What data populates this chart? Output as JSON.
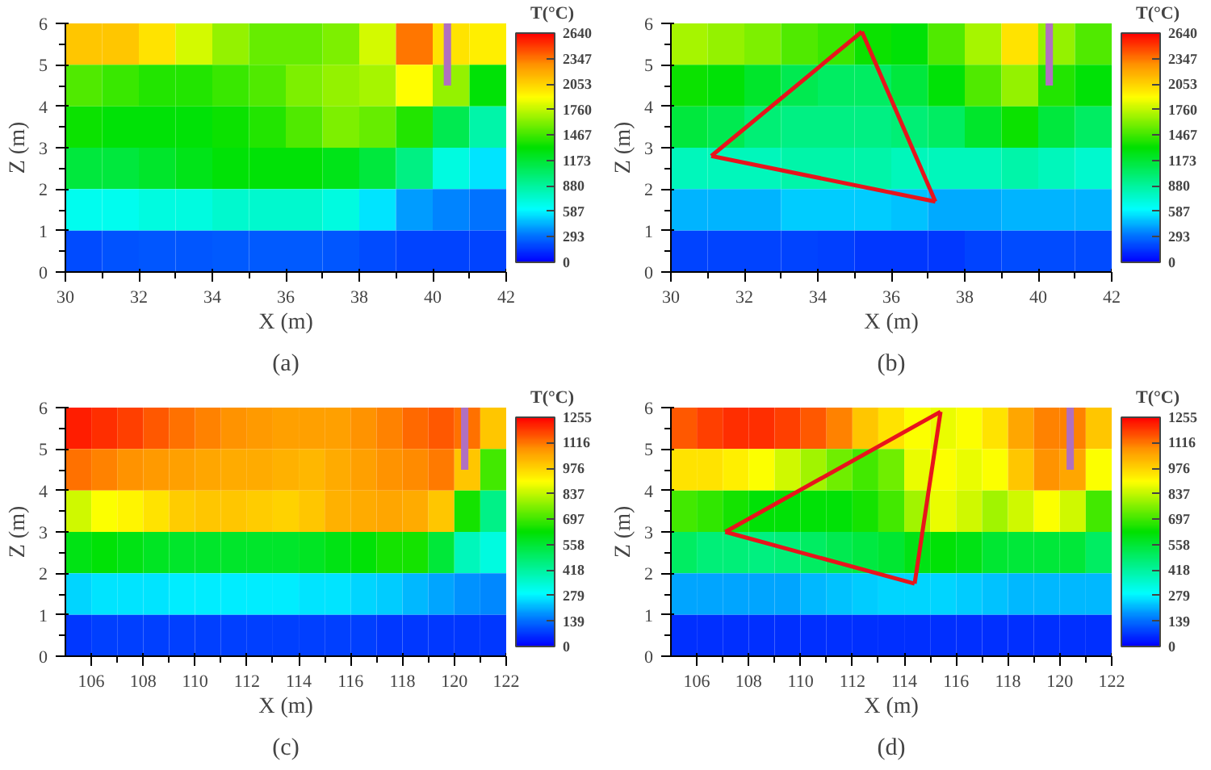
{
  "chart_data": [
    {
      "type": "heatmap",
      "title": "(a)",
      "xlabel": "X (m)",
      "ylabel": "Z (m)",
      "clabel": "T(°C)",
      "xlim": [
        30,
        42
      ],
      "ylim": [
        0,
        6
      ],
      "xticks": [
        30,
        32,
        34,
        36,
        38,
        40,
        42
      ],
      "yticks": [
        0,
        1,
        2,
        3,
        4,
        5,
        6
      ],
      "clim": [
        0,
        2640
      ],
      "cticks": [
        0,
        293,
        587,
        880,
        1173,
        1467,
        1760,
        2053,
        2347,
        2640
      ],
      "series": [
        {
          "type": "bar",
          "x": [
            40.4
          ],
          "base": [
            4.5
          ],
          "values": [
            1.5
          ],
          "color": "#b070c0"
        }
      ],
      "cells": [
        [
          2100,
          2100,
          2000,
          1800,
          1650,
          1550,
          1550,
          1600,
          1800,
          2350,
          2000,
          1950
        ],
        [
          1500,
          1450,
          1400,
          1400,
          1450,
          1500,
          1600,
          1650,
          1700,
          1900,
          1650,
          1300
        ],
        [
          1350,
          1300,
          1300,
          1300,
          1350,
          1400,
          1500,
          1600,
          1550,
          1400,
          1100,
          850
        ],
        [
          1150,
          1150,
          1200,
          1250,
          1300,
          1300,
          1300,
          1250,
          1150,
          950,
          700,
          550
        ],
        [
          650,
          650,
          700,
          700,
          750,
          750,
          750,
          700,
          550,
          400,
          350,
          300
        ],
        [
          200,
          220,
          230,
          230,
          240,
          240,
          240,
          230,
          200,
          180,
          180,
          180
        ]
      ]
    },
    {
      "type": "heatmap",
      "title": "(b)",
      "xlabel": "X (m)",
      "ylabel": "Z (m)",
      "clabel": "T(°C)",
      "xlim": [
        30,
        42
      ],
      "ylim": [
        0,
        6
      ],
      "xticks": [
        30,
        32,
        34,
        36,
        38,
        40,
        42
      ],
      "yticks": [
        0,
        1,
        2,
        3,
        4,
        5,
        6
      ],
      "clim": [
        0,
        2640
      ],
      "cticks": [
        0,
        293,
        587,
        880,
        1173,
        1467,
        1760,
        2053,
        2347,
        2640
      ],
      "series": [
        {
          "type": "bar",
          "x": [
            40.3
          ],
          "base": [
            4.5
          ],
          "values": [
            1.5
          ],
          "color": "#b070c0"
        },
        {
          "type": "line",
          "x": [
            31.1,
            35.2
          ],
          "values": [
            2.8,
            5.8
          ],
          "color": "#e8141c"
        },
        {
          "type": "line",
          "x": [
            35.2,
            37.2
          ],
          "values": [
            5.8,
            1.7
          ],
          "color": "#e8141c"
        },
        {
          "type": "line",
          "x": [
            31.1,
            37.2
          ],
          "values": [
            2.8,
            1.7
          ],
          "color": "#e8141c"
        }
      ],
      "cells": [
        [
          1700,
          1650,
          1600,
          1500,
          1450,
          1350,
          1300,
          1500,
          1700,
          2000,
          1650,
          1500
        ],
        [
          1350,
          1300,
          1200,
          1100,
          1050,
          1050,
          1150,
          1300,
          1500,
          1650,
          1400,
          1300
        ],
        [
          1150,
          1100,
          1000,
          950,
          950,
          950,
          1000,
          1050,
          1200,
          1350,
          1150,
          1050
        ],
        [
          800,
          800,
          800,
          850,
          850,
          850,
          800,
          800,
          800,
          850,
          800,
          750
        ],
        [
          450,
          450,
          450,
          500,
          500,
          500,
          480,
          430,
          430,
          450,
          450,
          450
        ],
        [
          180,
          180,
          180,
          180,
          170,
          150,
          150,
          150,
          180,
          200,
          200,
          200
        ]
      ]
    },
    {
      "type": "heatmap",
      "title": "(c)",
      "xlabel": "X (m)",
      "ylabel": "Z (m)",
      "clabel": "T(°C)",
      "xlim": [
        105,
        122
      ],
      "ylim": [
        0,
        6
      ],
      "xticks": [
        106,
        108,
        110,
        112,
        114,
        116,
        118,
        120,
        122
      ],
      "yticks": [
        0,
        1,
        2,
        3,
        4,
        5,
        6
      ],
      "clim": [
        0,
        1255
      ],
      "cticks": [
        0,
        139,
        279,
        418,
        558,
        697,
        837,
        976,
        1116,
        1255
      ],
      "series": [
        {
          "type": "bar",
          "x": [
            120.4
          ],
          "base": [
            4.5
          ],
          "values": [
            1.5
          ],
          "color": "#b070c0"
        }
      ],
      "cells": [
        [
          1220,
          1200,
          1180,
          1150,
          1120,
          1100,
          1080,
          1070,
          1060,
          1060,
          1060,
          1080,
          1100,
          1130,
          1150,
          1120,
          1000
        ],
        [
          1120,
          1100,
          1080,
          1070,
          1060,
          1050,
          1040,
          1040,
          1030,
          1020,
          1040,
          1060,
          1080,
          1090,
          1110,
          1000,
          700
        ],
        [
          850,
          900,
          920,
          950,
          990,
          1000,
          1000,
          990,
          980,
          1000,
          1030,
          1040,
          1050,
          1040,
          1000,
          650,
          450
        ],
        [
          600,
          620,
          600,
          580,
          570,
          570,
          570,
          570,
          570,
          580,
          600,
          620,
          650,
          650,
          550,
          380,
          330
        ],
        [
          250,
          260,
          260,
          260,
          270,
          270,
          270,
          270,
          270,
          260,
          260,
          250,
          240,
          220,
          200,
          180,
          170
        ],
        [
          70,
          80,
          80,
          80,
          80,
          80,
          80,
          80,
          80,
          80,
          80,
          80,
          70,
          70,
          70,
          70,
          70
        ]
      ]
    },
    {
      "type": "heatmap",
      "title": "(d)",
      "xlabel": "X (m)",
      "ylabel": "Z (m)",
      "clabel": "T(°C)",
      "xlim": [
        105,
        122
      ],
      "ylim": [
        0,
        6
      ],
      "xticks": [
        106,
        108,
        110,
        112,
        114,
        116,
        118,
        120,
        122
      ],
      "yticks": [
        0,
        1,
        2,
        3,
        4,
        5,
        6
      ],
      "clim": [
        0,
        1255
      ],
      "cticks": [
        0,
        139,
        279,
        418,
        558,
        697,
        837,
        976,
        1116,
        1255
      ],
      "series": [
        {
          "type": "bar",
          "x": [
            120.4
          ],
          "base": [
            4.5
          ],
          "values": [
            1.5
          ],
          "color": "#b070c0"
        },
        {
          "type": "line",
          "x": [
            107.1,
            115.4
          ],
          "values": [
            3.0,
            5.9
          ],
          "color": "#e8141c"
        },
        {
          "type": "line",
          "x": [
            114.4,
            115.4
          ],
          "values": [
            1.75,
            5.9
          ],
          "color": "#e8141c"
        },
        {
          "type": "line",
          "x": [
            107.1,
            114.4
          ],
          "values": [
            3.0,
            1.75
          ],
          "color": "#e8141c"
        }
      ],
      "cells": [
        [
          1150,
          1180,
          1200,
          1200,
          1180,
          1150,
          1100,
          1000,
          950,
          900,
          880,
          900,
          950,
          1050,
          1100,
          1100,
          1000
        ],
        [
          950,
          950,
          930,
          900,
          850,
          800,
          750,
          700,
          750,
          880,
          900,
          880,
          900,
          1000,
          1080,
          1050,
          900
        ],
        [
          700,
          680,
          650,
          620,
          620,
          620,
          620,
          650,
          700,
          800,
          880,
          850,
          800,
          850,
          900,
          850,
          700
        ],
        [
          500,
          470,
          470,
          460,
          470,
          500,
          520,
          540,
          560,
          600,
          620,
          600,
          560,
          550,
          550,
          550,
          500
        ],
        [
          200,
          200,
          200,
          200,
          200,
          220,
          230,
          240,
          250,
          250,
          250,
          240,
          230,
          220,
          220,
          220,
          220
        ],
        [
          60,
          60,
          60,
          60,
          60,
          60,
          60,
          60,
          60,
          60,
          60,
          60,
          60,
          60,
          60,
          60,
          60
        ]
      ]
    }
  ]
}
